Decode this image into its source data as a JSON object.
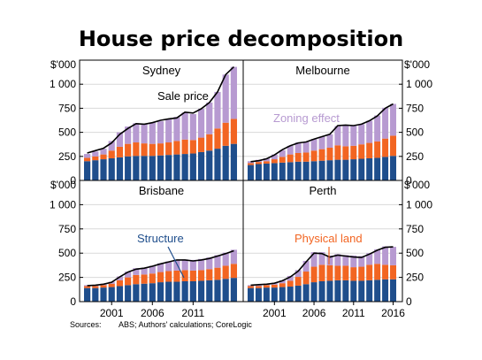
{
  "title": "House price decomposition",
  "source": {
    "prefix": "Sources:",
    "text": "ABS; Authors' calculations; CoreLogic"
  },
  "colors": {
    "structure": "#1f4e8c",
    "land": "#f26522",
    "zoning": "#b79ad1",
    "line": "#000000",
    "grid": "#d9d9d9",
    "annotation_structure": "#1f4e8c",
    "annotation_land": "#f26522",
    "annotation_zoning": "#b79ad1"
  },
  "chart_data": {
    "type": "bar",
    "stacked": true,
    "y_unit_label": "$'000",
    "ylim": [
      0,
      1250
    ],
    "y_ticks": [
      0,
      250,
      500,
      750,
      1000
    ],
    "y_tick_labels": [
      "0",
      "250",
      "500",
      "750",
      "1 000"
    ],
    "x_tick_labels": [
      "2001",
      "2006",
      "2011",
      "2016"
    ],
    "years": [
      1998,
      1999,
      2000,
      2001,
      2002,
      2003,
      2004,
      2005,
      2006,
      2007,
      2008,
      2009,
      2010,
      2011,
      2012,
      2013,
      2014,
      2015,
      2016
    ],
    "series_names": [
      "Structure",
      "Physical land",
      "Zoning effect"
    ],
    "panels": [
      {
        "name": "Sydney",
        "structure": [
          200,
          210,
          220,
          230,
          240,
          250,
          255,
          255,
          255,
          260,
          265,
          270,
          275,
          280,
          295,
          310,
          330,
          360,
          380
        ],
        "land": [
          35,
          40,
          50,
          80,
          110,
          130,
          140,
          130,
          125,
          125,
          130,
          140,
          150,
          140,
          150,
          170,
          210,
          240,
          260
        ],
        "zoning": [
          40,
          50,
          60,
          100,
          150,
          180,
          200,
          200,
          220,
          230,
          240,
          250,
          280,
          270,
          300,
          330,
          380,
          500,
          540
        ],
        "sale_price": [
          285,
          310,
          335,
          390,
          480,
          540,
          590,
          585,
          600,
          625,
          640,
          650,
          710,
          700,
          745,
          810,
          920,
          1100,
          1180
        ],
        "annotation": {
          "text": "Sale price",
          "color": "annotation_zoning"
        }
      },
      {
        "name": "Melbourne",
        "structure": [
          160,
          170,
          175,
          180,
          185,
          190,
          195,
          195,
          200,
          205,
          210,
          215,
          215,
          220,
          225,
          230,
          235,
          245,
          255
        ],
        "land": [
          20,
          22,
          25,
          40,
          60,
          80,
          90,
          95,
          110,
          120,
          130,
          150,
          140,
          140,
          150,
          160,
          170,
          190,
          210
        ],
        "zoning": [
          20,
          22,
          30,
          50,
          70,
          90,
          110,
          110,
          120,
          130,
          140,
          200,
          220,
          210,
          210,
          230,
          270,
          320,
          330
        ],
        "sale_price": [
          195,
          205,
          225,
          265,
          320,
          360,
          390,
          400,
          430,
          455,
          480,
          570,
          575,
          570,
          585,
          620,
          670,
          750,
          795
        ],
        "annotation": {
          "text": "Zoning effect",
          "color": "annotation_zoning"
        }
      },
      {
        "name": "Brisbane",
        "structure": [
          140,
          140,
          145,
          150,
          160,
          170,
          180,
          185,
          190,
          200,
          205,
          205,
          210,
          210,
          215,
          220,
          225,
          235,
          245
        ],
        "land": [
          20,
          20,
          25,
          35,
          60,
          80,
          95,
          95,
          100,
          105,
          110,
          115,
          115,
          110,
          110,
          115,
          125,
          135,
          145
        ],
        "zoning": [
          10,
          10,
          15,
          20,
          40,
          60,
          70,
          70,
          80,
          90,
          100,
          110,
          110,
          110,
          115,
          120,
          130,
          135,
          145
        ],
        "sale_price": [
          165,
          170,
          180,
          200,
          255,
          305,
          335,
          345,
          365,
          390,
          410,
          430,
          430,
          420,
          430,
          445,
          470,
          495,
          525
        ],
        "annotation": {
          "text": "Structure",
          "color": "annotation_structure"
        }
      },
      {
        "name": "Perth",
        "structure": [
          140,
          140,
          145,
          145,
          150,
          155,
          165,
          180,
          200,
          210,
          215,
          220,
          220,
          215,
          215,
          220,
          225,
          230,
          230
        ],
        "land": [
          20,
          20,
          25,
          30,
          40,
          60,
          90,
          130,
          160,
          170,
          160,
          150,
          150,
          140,
          145,
          160,
          165,
          150,
          145
        ],
        "zoning": [
          10,
          12,
          15,
          20,
          30,
          50,
          70,
          110,
          150,
          130,
          100,
          120,
          110,
          120,
          110,
          120,
          150,
          190,
          190
        ],
        "sale_price": [
          170,
          175,
          180,
          190,
          215,
          255,
          315,
          410,
          500,
          495,
          460,
          480,
          470,
          460,
          455,
          490,
          530,
          560,
          565
        ],
        "annotation": {
          "text": "Physical land",
          "color": "annotation_land"
        }
      }
    ]
  }
}
